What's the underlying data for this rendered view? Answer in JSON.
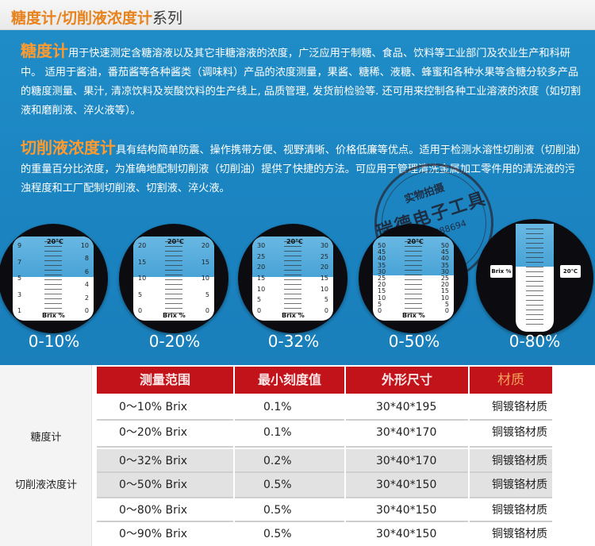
{
  "header": {
    "title_highlight": "糖度计/切削液浓度计",
    "title_rest": "系列"
  },
  "intro": {
    "sugar_lead": "糖度计",
    "sugar_text": "用于快速测定含糖溶液以及其它非糖溶液的浓度，广泛应用于制糖、食品、饮料等工业部门及农业生产和科研中。 适用于酱油，番茄酱等各种酱类（调味料）产品的浓度测量，果酱、糖稀、液糖、蜂蜜和各种水果等含糖分较多产品的糖度测量、果汁, 清凉饮料及炭酸饮料的生产线上, 品质管理, 发货前检验等. 还可用来控制各种工业溶液的浓度（如切割液和磨削液、淬火液等）。",
    "cutting_lead": "切削液浓度计",
    "cutting_text": "具有结构简单防震、操作携带方便、视野清晰、价格低廉等优点。适用于检测水溶性切削液（切削油）的重量百分比浓度，为准确地配制切削液（切削油）提供了快捷的方法。可应用于管理清洗金属加工零件用的清洗液的污浊程度和工厂配制切削液、切割液、淬火液。"
  },
  "stamp": {
    "line1": "实物拍摄",
    "line2": "瑞德电子工具",
    "line3": "13580888694"
  },
  "gauges": [
    {
      "range": "0-10%",
      "deg": "20℃",
      "brix": "Brix %",
      "level": 0.48,
      "ticks": [
        "10",
        "8",
        "6",
        "4",
        "2",
        "0"
      ],
      "left_ticks": [
        "9",
        "7",
        "5",
        "3",
        "1"
      ]
    },
    {
      "range": "0-20%",
      "deg": "20℃",
      "brix": "Brix %",
      "level": 0.48,
      "ticks": [
        "20",
        "15",
        "10",
        "5",
        "0"
      ],
      "left_ticks": [
        "20",
        "15",
        "10",
        "5",
        "0"
      ]
    },
    {
      "range": "0-32%",
      "deg": "20℃",
      "brix": "Brix %",
      "level": 0.48,
      "ticks": [
        "30",
        "25",
        "20",
        "15",
        "10",
        "5",
        "0"
      ],
      "left_ticks": [
        "30",
        "25",
        "20",
        "15",
        "10",
        "5",
        "0"
      ]
    },
    {
      "range": "0-50%",
      "deg": "20℃",
      "brix": "Brix %",
      "level": 0.46,
      "ticks": [
        "50",
        "45",
        "40",
        "35",
        "30",
        "25",
        "20",
        "15",
        "10",
        "5",
        "0"
      ],
      "left_ticks": [
        "50",
        "45",
        "40",
        "35",
        "30",
        "25",
        "20",
        "15",
        "10",
        "5",
        "0"
      ]
    },
    {
      "range": "0-80%",
      "deg": "20℃",
      "brix": "Brix %",
      "level": 0.4,
      "ticks": [],
      "left_ticks": []
    }
  ],
  "table": {
    "headers": [
      "测量范围",
      "最小刻度值",
      "外形尺寸",
      "材质"
    ],
    "groups": [
      "糖度计",
      "切削液浓度计"
    ],
    "rows": [
      {
        "range": "0～10% Brix",
        "min": "0.1%",
        "size": "30*40*195",
        "material": "铜镀铬材质"
      },
      {
        "range": "0～20% Brix",
        "min": "0.1%",
        "size": "30*40*170",
        "material": "铜镀铬材质"
      },
      {
        "range": "0～32% Brix",
        "min": "0.2%",
        "size": "30*40*170",
        "material": "铜镀铬材质"
      },
      {
        "range": "0～50% Brix",
        "min": "0.5%",
        "size": "30*40*150",
        "material": "铜镀铬材质"
      },
      {
        "range": "0～80% Brix",
        "min": "0.5%",
        "size": "30*40*150",
        "material": "铜镀铬材质"
      },
      {
        "range": "0～90% Brix",
        "min": "0.5%",
        "size": "30*40*150",
        "material": "铜镀铬材质"
      }
    ]
  }
}
